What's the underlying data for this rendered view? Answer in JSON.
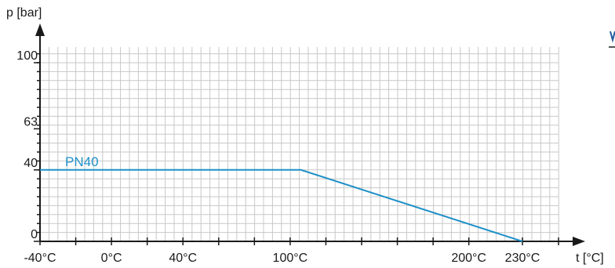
{
  "colors": {
    "series": "#1e90c8",
    "grid": "#c8c8c8",
    "axis": "#1a1a1a",
    "marker": "#1e5aa0"
  },
  "chart_data": {
    "type": "line",
    "title": "",
    "xlabel": "t [°C]",
    "ylabel": "p [bar]",
    "xlim": [
      -40,
      230
    ],
    "ylim": [
      0,
      100
    ],
    "x_ticks": [
      {
        "value": -40,
        "label": "-40°C"
      },
      {
        "value": -20,
        "label": ""
      },
      {
        "value": 0,
        "label": "0°C"
      },
      {
        "value": 20,
        "label": ""
      },
      {
        "value": 40,
        "label": "40°C"
      },
      {
        "value": 60,
        "label": ""
      },
      {
        "value": 80,
        "label": ""
      },
      {
        "value": 100,
        "label": "100°C"
      },
      {
        "value": 120,
        "label": ""
      },
      {
        "value": 140,
        "label": ""
      },
      {
        "value": 160,
        "label": ""
      },
      {
        "value": 180,
        "label": ""
      },
      {
        "value": 200,
        "label": "200°C"
      },
      {
        "value": 230,
        "label": "230°C"
      }
    ],
    "y_ticks": [
      {
        "value": 0,
        "label": "0"
      },
      {
        "value": 40,
        "label": "40"
      },
      {
        "value": 63,
        "label": "63"
      },
      {
        "value": 100,
        "label": "100"
      }
    ],
    "grid": true,
    "series": [
      {
        "name": "PN40",
        "x": [
          -40,
          106,
          230
        ],
        "y": [
          40,
          40,
          0
        ]
      }
    ]
  }
}
